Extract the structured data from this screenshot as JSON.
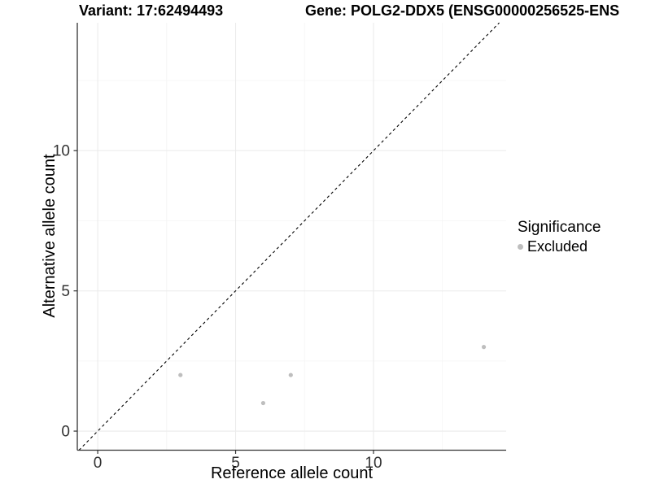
{
  "titles": {
    "variant": "Variant: 17:62494493",
    "gene": "Gene: POLG2-DDX5 (ENSG00000256525-ENS"
  },
  "chart_data": {
    "type": "scatter",
    "xlabel": "Reference allele count",
    "ylabel": "Alternative allele count",
    "x_ticks": [
      0,
      5,
      10
    ],
    "y_ticks": [
      0,
      5,
      10
    ],
    "x_minor_gridlines": [
      2.5,
      7.5,
      12.5
    ],
    "y_minor_gridlines": [
      2.5,
      7.5,
      12.5
    ],
    "xlim": [
      -0.74,
      14.81
    ],
    "ylim": [
      -0.68,
      14.56
    ],
    "grid": "major and minor, very light gray, on white panel",
    "identity_line": {
      "type": "dashed",
      "slope": 1,
      "intercept": 0,
      "color": "#000000"
    },
    "series": [
      {
        "name": "Excluded",
        "color": "#bebebe",
        "points": [
          [
            3,
            2
          ],
          [
            6,
            1
          ],
          [
            7,
            2
          ],
          [
            14,
            3
          ]
        ]
      }
    ],
    "legend": {
      "position": "right",
      "title": "Significance",
      "items": [
        {
          "label": "Excluded",
          "color": "#bebebe"
        }
      ]
    }
  },
  "colors": {
    "background": "#ffffff",
    "axis_line": "#333333",
    "tick_label": "#333333",
    "grid_major": "#ebebeb",
    "grid_minor": "#f5f5f5",
    "point": "#bebebe",
    "identity_line": "#000000"
  }
}
